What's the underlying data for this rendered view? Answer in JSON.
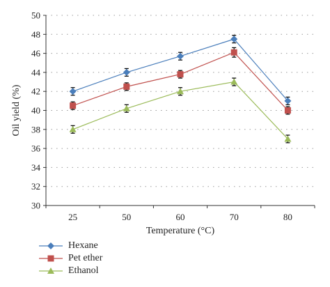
{
  "chart_data": {
    "type": "line",
    "xlabel": "Temperature (°C)",
    "ylabel": "Oil yield (%)",
    "categories": [
      "25",
      "50",
      "60",
      "70",
      "80"
    ],
    "ylim": [
      30,
      50
    ],
    "yticks": [
      "30",
      "32",
      "34",
      "36",
      "38",
      "40",
      "42",
      "44",
      "46",
      "48",
      "50"
    ],
    "grid": "dotted horizontal",
    "legend_position": "bottom-left",
    "series": [
      {
        "name": "Hexane",
        "marker": "diamond",
        "color": "#4a7ebb",
        "values": [
          42.0,
          44.0,
          45.7,
          47.5,
          41.0
        ],
        "errors": [
          0.4,
          0.4,
          0.4,
          0.4,
          0.4
        ]
      },
      {
        "name": "Pet ether",
        "marker": "square",
        "color": "#c0504d",
        "values": [
          40.5,
          42.5,
          43.8,
          46.1,
          40.0
        ],
        "errors": [
          0.4,
          0.4,
          0.4,
          0.5,
          0.4
        ]
      },
      {
        "name": "Ethanol",
        "marker": "triangle",
        "color": "#9bbb59",
        "values": [
          38.0,
          40.2,
          42.0,
          43.0,
          37.0
        ],
        "errors": [
          0.4,
          0.4,
          0.4,
          0.4,
          0.4
        ]
      }
    ]
  }
}
